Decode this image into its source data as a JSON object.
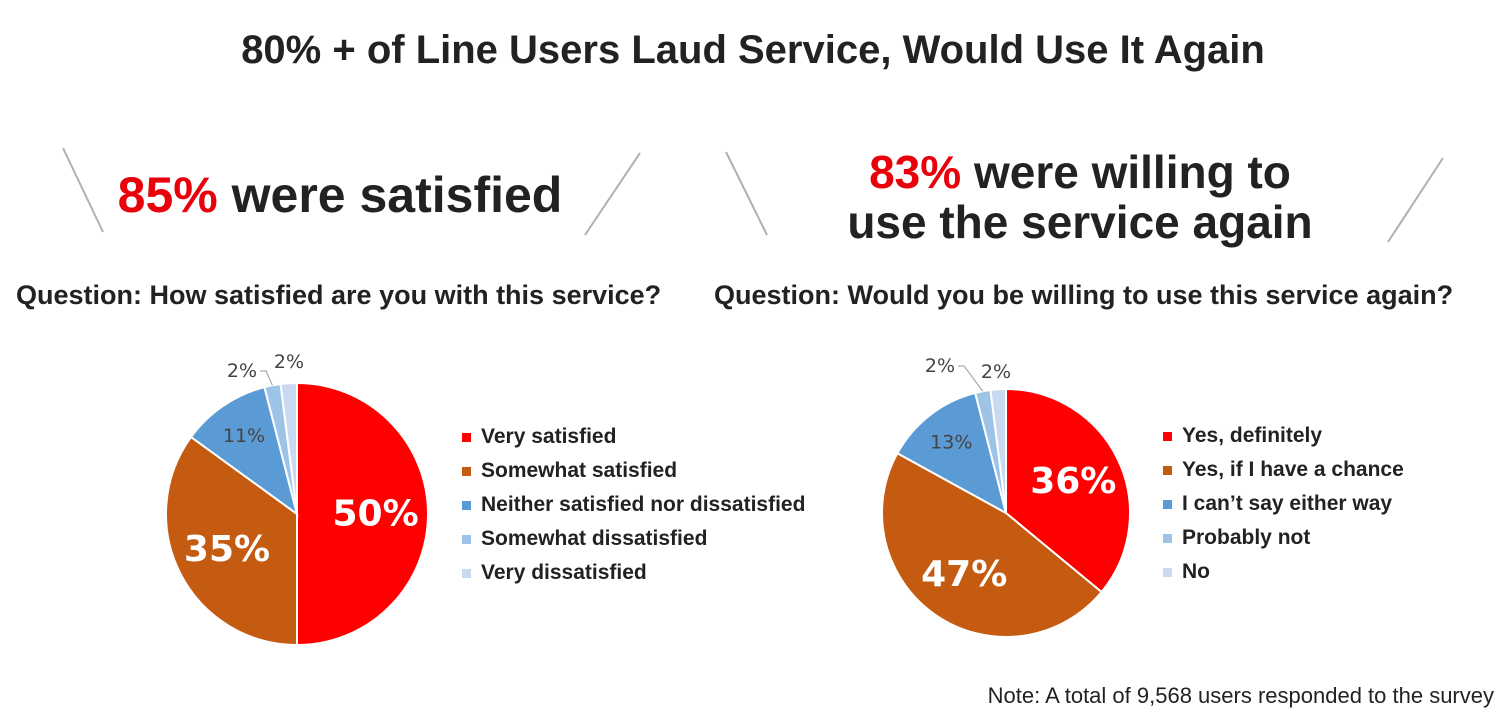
{
  "title": "80% + of Line Users Laud Service, Would Use It Again",
  "left": {
    "headline_pct": "85%",
    "headline_rest": " were satisfied",
    "question": "Question: How satisfied are you with this service?"
  },
  "right": {
    "headline_pct": "83%",
    "headline_rest1": " were willing to",
    "headline_rest2": "use the service again",
    "question": "Question: Would you be willing to use this service again?"
  },
  "note": "Note: A total of 9,568 users responded to the survey",
  "chart_data": [
    {
      "type": "pie",
      "categories": [
        "Very satisfied",
        "Somewhat satisfied",
        "Neither satisfied nor dissatisfied",
        "Somewhat dissatisfied",
        "Very dissatisfied"
      ],
      "values": [
        50,
        35,
        11,
        2,
        2
      ],
      "labels": [
        "50%",
        "35%",
        "11%",
        "2%",
        "2%"
      ],
      "colors": [
        "#ff0000",
        "#c55a11",
        "#5b9bd5",
        "#9dc3e6",
        "#c9daf0"
      ],
      "legend": "right"
    },
    {
      "type": "pie",
      "categories": [
        "Yes, definitely",
        "Yes, if I have a chance",
        "I can’t say either way",
        "Probably not",
        "No"
      ],
      "values": [
        36,
        47,
        13,
        2,
        2
      ],
      "labels": [
        "36%",
        "47%",
        "13%",
        "2%",
        "2%"
      ],
      "colors": [
        "#ff0000",
        "#c55a11",
        "#5b9bd5",
        "#9dc3e6",
        "#c9daf0"
      ],
      "legend": "right"
    }
  ]
}
